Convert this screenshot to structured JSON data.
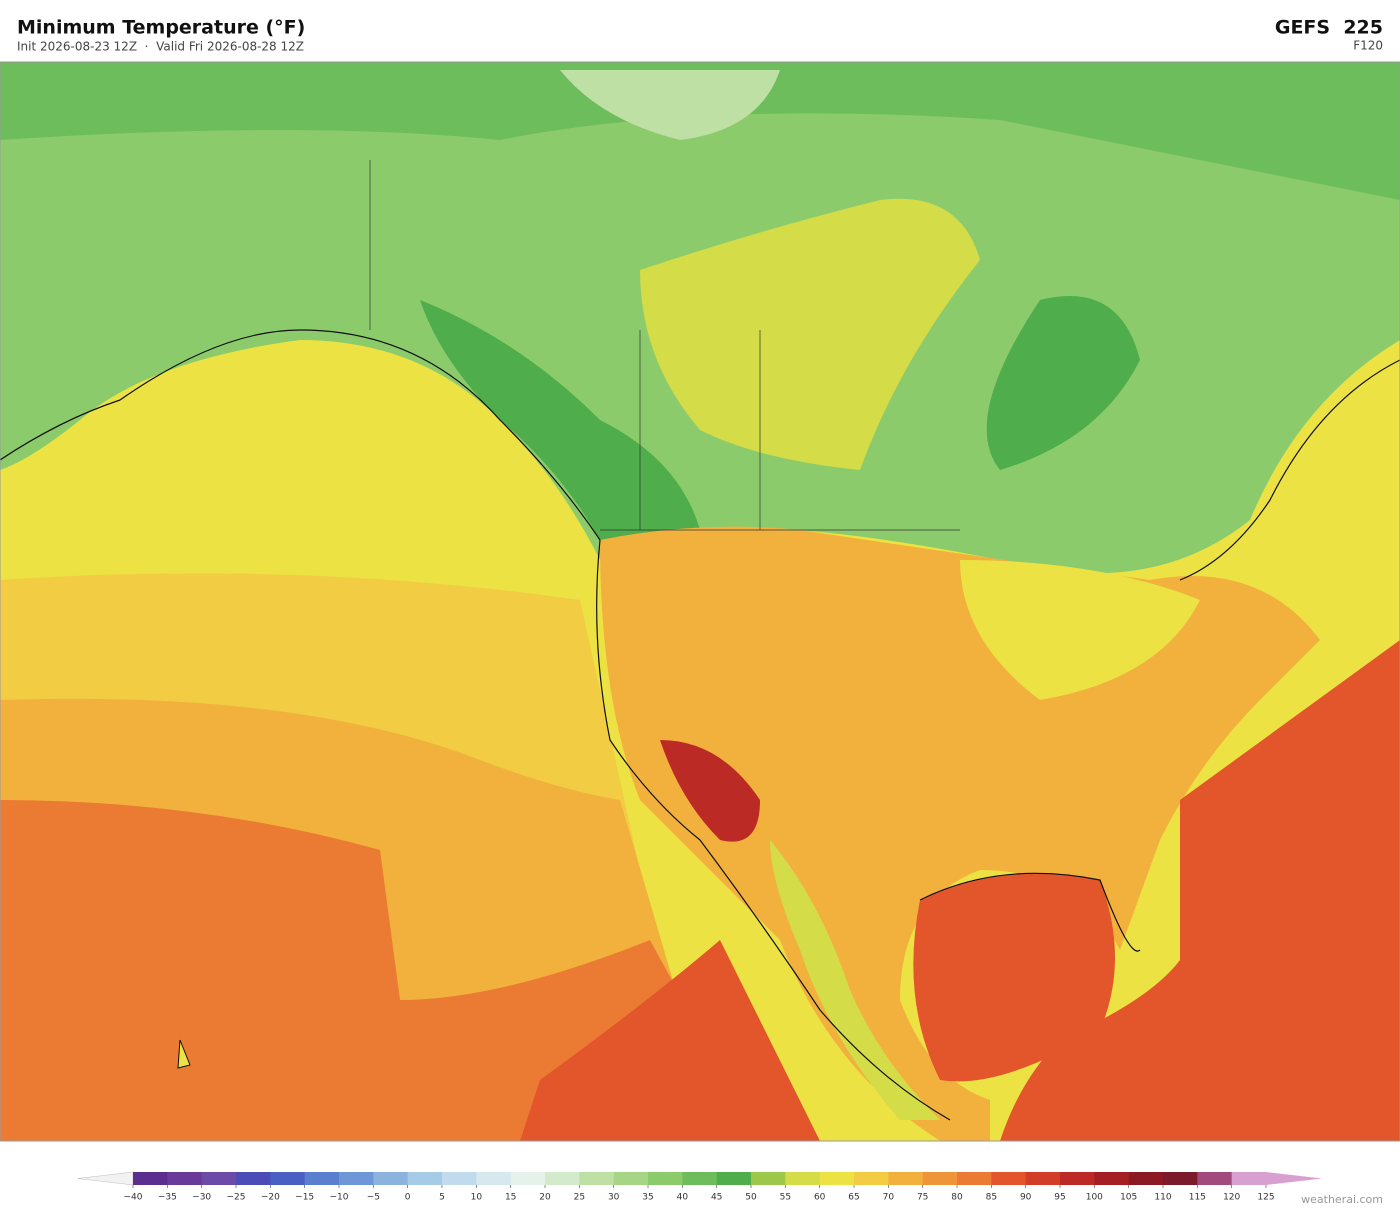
{
  "header": {
    "title": "Minimum Temperature  (°F)",
    "subtitle": "Init 2026-08-23 12Z  ·  Valid Fri 2026-08-28 12Z",
    "model": "GEFS  225",
    "forecast_hour": "F120"
  },
  "colorbar": {
    "ticks": [
      {
        "value": -40,
        "label": "−40"
      },
      {
        "value": -35,
        "label": "−35"
      },
      {
        "value": -30,
        "label": "−30"
      },
      {
        "value": -25,
        "label": "−25"
      },
      {
        "value": -20,
        "label": "−20"
      },
      {
        "value": -15,
        "label": "−15"
      },
      {
        "value": -10,
        "label": "−10"
      },
      {
        "value": -5,
        "label": "−5"
      },
      0,
      5,
      10,
      15,
      20,
      25,
      30,
      35,
      40,
      45,
      50,
      55,
      60,
      65,
      70,
      75,
      80,
      85,
      90,
      95,
      100,
      105,
      110,
      115,
      120,
      125
    ],
    "colors": [
      "#5b2d8e",
      "#6a3a9a",
      "#6d4aa8",
      "#4b4cb8",
      "#4a5fc4",
      "#5b7fcf",
      "#6f96d6",
      "#8cb3dd",
      "#a6cbe6",
      "#c0dcec",
      "#d6e9ef",
      "#e5f2ea",
      "#d3ebcb",
      "#bfe0a4",
      "#a6d685",
      "#8ccb6c",
      "#6dbd5c",
      "#4fad4c",
      "#9cc849",
      "#d4dc48",
      "#ece244",
      "#f2cd43",
      "#f2b13d",
      "#ee9539",
      "#eb7a33",
      "#e3552b",
      "#d23d27",
      "#bb2a24",
      "#a51e23",
      "#8b1a22",
      "#7a1a2a",
      "#a04a7e",
      "#d8a0d0"
    ],
    "under_color": "#f2f2f2",
    "over_color": "#d8a0d0"
  },
  "footer": {
    "credit": "weatherai.com"
  }
}
